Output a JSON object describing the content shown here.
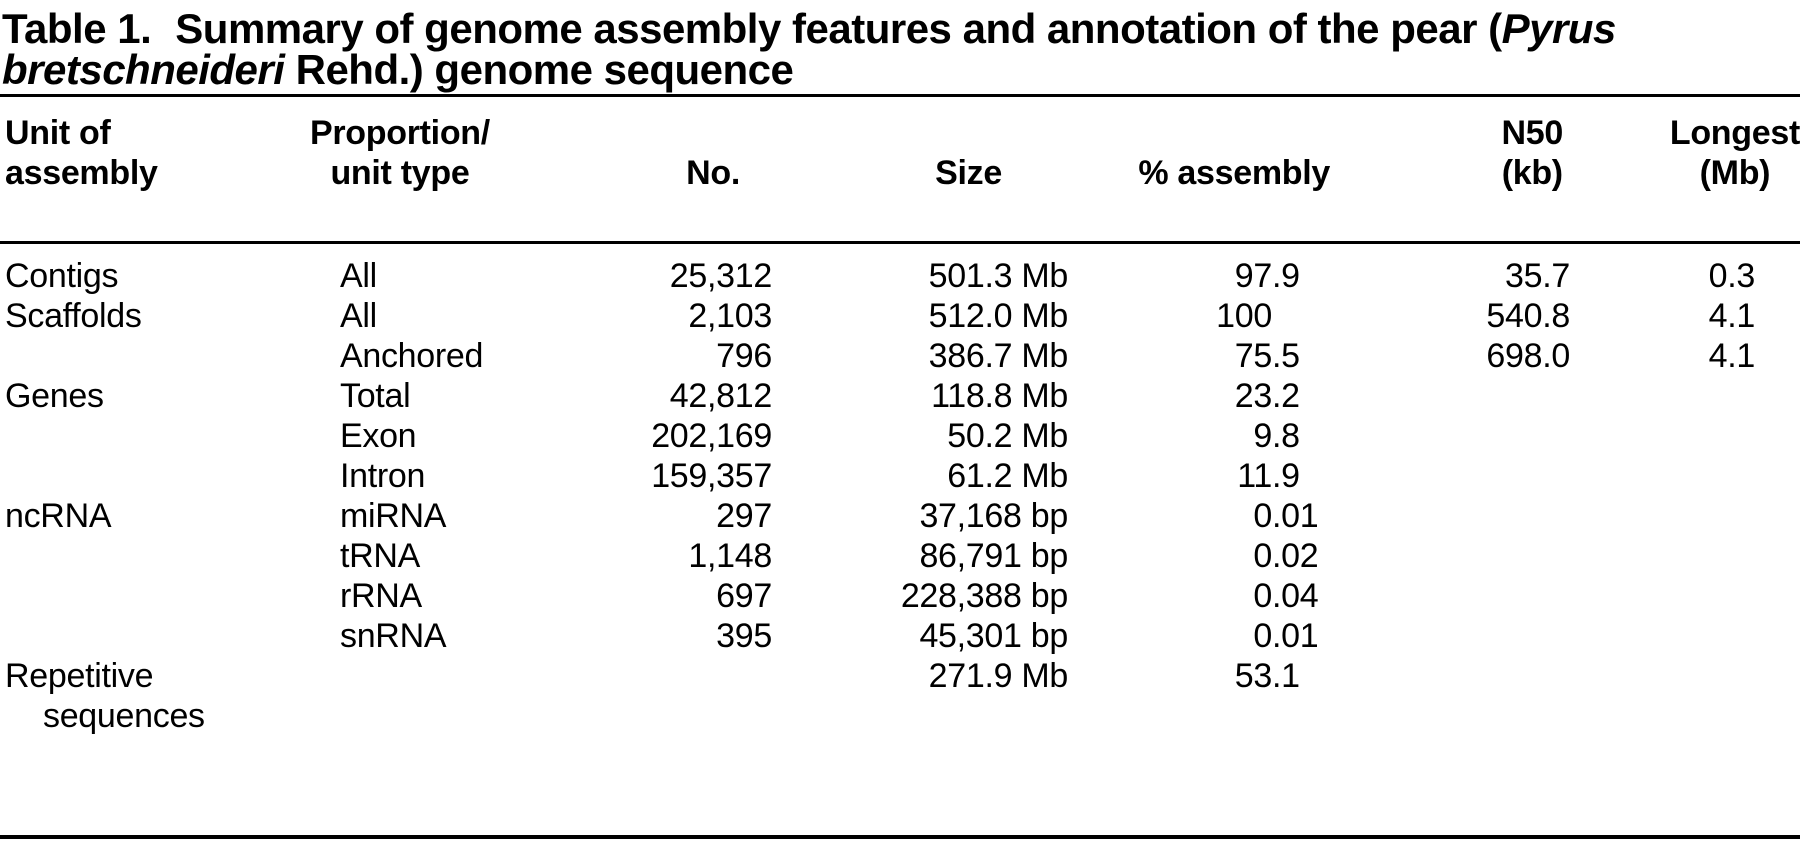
{
  "colors": {
    "text": "#000000",
    "background": "#ffffff",
    "rule": "#000000"
  },
  "title": {
    "label": "Table 1.",
    "before_species": "Summary of genome assembly features and annotation of the pear (",
    "species_line1": "Pyrus",
    "species_line2": "bretschneideri",
    "after_species": " Rehd.) genome sequence"
  },
  "table": {
    "columns": [
      {
        "key": "unit",
        "lines": [
          "Unit of",
          "assembly"
        ]
      },
      {
        "key": "type",
        "lines": [
          "Proportion/",
          "unit type"
        ]
      },
      {
        "key": "no",
        "lines": [
          "No."
        ]
      },
      {
        "key": "size",
        "lines": [
          "Size"
        ]
      },
      {
        "key": "pct",
        "lines": [
          "% assembly"
        ]
      },
      {
        "key": "n50",
        "lines": [
          "N50",
          "(kb)"
        ]
      },
      {
        "key": "longest",
        "lines": [
          "Longest",
          "(Mb)"
        ]
      }
    ],
    "rows": [
      {
        "unit": "Contigs",
        "type": "All",
        "no": "25,312",
        "size": "501.3 Mb",
        "pct": "97.9",
        "n50": "35.7",
        "longest": "0.3"
      },
      {
        "unit": "Scaffolds",
        "type": "All",
        "no": "2,103",
        "size": "512.0 Mb",
        "pct": "100",
        "n50": "540.8",
        "longest": "4.1"
      },
      {
        "unit": "",
        "type": "Anchored",
        "no": "796",
        "size": "386.7 Mb",
        "pct": "75.5",
        "n50": "698.0",
        "longest": "4.1"
      },
      {
        "unit": "Genes",
        "type": "Total",
        "no": "42,812",
        "size": "118.8 Mb",
        "pct": "23.2",
        "n50": "",
        "longest": ""
      },
      {
        "unit": "",
        "type": "Exon",
        "no": "202,169",
        "size": "50.2 Mb",
        "pct": "9.8",
        "n50": "",
        "longest": ""
      },
      {
        "unit": "",
        "type": "Intron",
        "no": "159,357",
        "size": "61.2 Mb",
        "pct": "11.9",
        "n50": "",
        "longest": ""
      },
      {
        "unit": "ncRNA",
        "type": "miRNA",
        "no": "297",
        "size": "37,168 bp",
        "pct": "0.01",
        "n50": "",
        "longest": ""
      },
      {
        "unit": "",
        "type": "tRNA",
        "no": "1,148",
        "size": "86,791 bp",
        "pct": "0.02",
        "n50": "",
        "longest": ""
      },
      {
        "unit": "",
        "type": "rRNA",
        "no": "697",
        "size": "228,388 bp",
        "pct": "0.04",
        "n50": "",
        "longest": ""
      },
      {
        "unit": "",
        "type": "snRNA",
        "no": "395",
        "size": "45,301 bp",
        "pct": "0.01",
        "n50": "",
        "longest": ""
      },
      {
        "unit": "Repetitive",
        "unit2": "sequences",
        "type": "",
        "no": "",
        "size": "271.9 Mb",
        "pct": "53.1",
        "n50": "",
        "longest": ""
      }
    ]
  }
}
